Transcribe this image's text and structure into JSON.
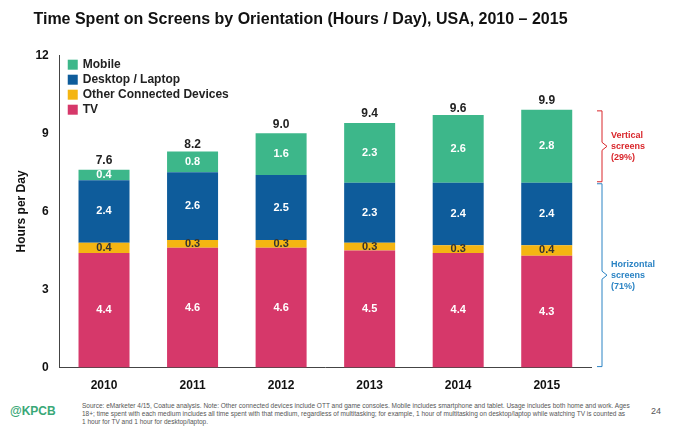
{
  "chart_data": {
    "type": "bar",
    "title": "Time Spent on Screens by Orientation (Hours / Day), USA, 2010 – 2015",
    "y_label": "Hours per Day",
    "categories": [
      "2010",
      "2011",
      "2012",
      "2013",
      "2014",
      "2015"
    ],
    "series": [
      {
        "name": "TV",
        "color": "#d6386a",
        "values": [
          4.4,
          4.6,
          4.6,
          4.5,
          4.4,
          4.3
        ]
      },
      {
        "name": "Other Connected Devices",
        "color": "#f4b512",
        "values": [
          0.4,
          0.3,
          0.3,
          0.3,
          0.3,
          0.4
        ]
      },
      {
        "name": "Desktop / Laptop",
        "color": "#0e5c9b",
        "values": [
          2.4,
          2.6,
          2.5,
          2.3,
          2.4,
          2.4
        ]
      },
      {
        "name": "Mobile",
        "color": "#3db78a",
        "values": [
          0.4,
          0.8,
          1.6,
          2.3,
          2.6,
          2.8
        ]
      }
    ],
    "totals": [
      7.6,
      8.2,
      9.0,
      9.4,
      9.6,
      9.9
    ],
    "total_labels": [
      "7.6",
      "8.2",
      "9.0",
      "9.4",
      "9.6",
      "9.9"
    ],
    "ylim": [
      0,
      12
    ],
    "yticks": [
      0,
      3,
      6,
      9,
      12
    ],
    "stacked": true,
    "data_labels": true,
    "grid": false,
    "legend": "top-left",
    "annotations": [
      {
        "text": [
          "Vertical",
          "screens",
          "(29%)"
        ],
        "color": "#d9262b",
        "covers": [
          "Mobile"
        ]
      },
      {
        "text": [
          "Horizontal",
          "screens",
          "(71%)"
        ],
        "color": "#2a83c4",
        "covers": [
          "TV",
          "Other Connected Devices",
          "Desktop / Laptop"
        ]
      }
    ],
    "footer": {
      "brand": "@KPCB",
      "source": "Source: eMarketer 4/15, Coatue analysis. Note: Other connected devices include OTT and game consoles. Mobile includes smartphone and tablet. Usage includes both home and work. Ages 18+; time spent with each medium includes all time spent with that medium, regardless of multitasking; for example, 1 hour of multitasking on desktop/laptop while watching TV is counted as 1 hour for TV and 1 hour for desktop/laptop.",
      "page": "24"
    }
  }
}
